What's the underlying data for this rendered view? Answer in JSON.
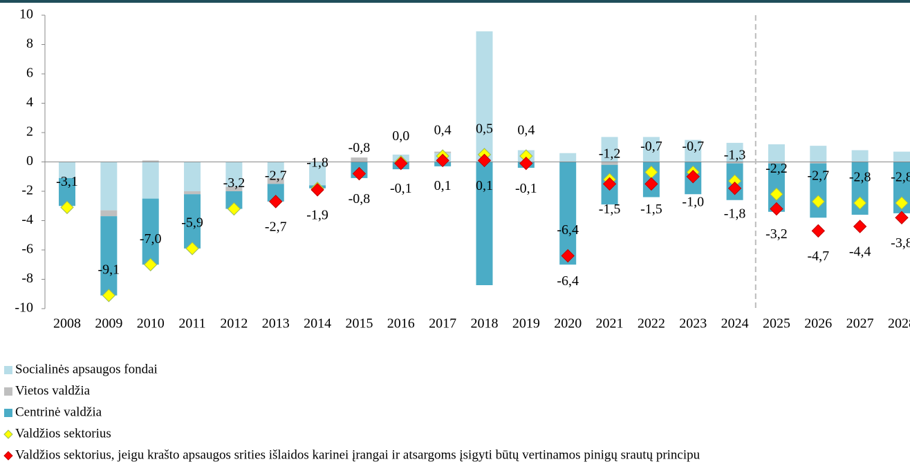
{
  "chart_data": {
    "type": "bar",
    "categories": [
      "2008",
      "2009",
      "2010",
      "2011",
      "2012",
      "2013",
      "2014",
      "2015",
      "2016",
      "2017",
      "2018",
      "2019",
      "2020",
      "2021",
      "2022",
      "2023",
      "2024",
      "2025",
      "2026",
      "2027",
      "2028"
    ],
    "series": [
      {
        "name": "Socialinės apsaugos fondai",
        "color": "#b7dde8",
        "values": [
          -1.1,
          -3.3,
          -2.5,
          -2.0,
          -1.7,
          -1.1,
          -1.6,
          0,
          0.5,
          0.6,
          8.9,
          0.8,
          0.6,
          1.7,
          1.7,
          1.5,
          1.3,
          1.2,
          1.1,
          0.8,
          0.7
        ]
      },
      {
        "name": "Vietos valdžia",
        "color": "#bfbfbf",
        "values": [
          0,
          -0.4,
          0.1,
          -0.2,
          -0.3,
          -0.4,
          0,
          0.3,
          0,
          0.1,
          0,
          0,
          0,
          -0.2,
          0,
          0,
          -0.1,
          -0.1,
          -0.1,
          0,
          0
        ]
      },
      {
        "name": "Centrinė valdžia",
        "color": "#4bacc6",
        "values": [
          -1.9,
          -5.4,
          -4.5,
          -3.7,
          -1.2,
          -1.2,
          -0.2,
          -1.1,
          -0.5,
          -0.3,
          -8.4,
          -0.4,
          -7.0,
          -2.7,
          -2.4,
          -2.2,
          -2.5,
          -3.3,
          -3.7,
          -3.6,
          -3.5
        ]
      },
      {
        "name": "Valdžios sektorius",
        "color": "#ffff00",
        "marker": "diamond",
        "values": [
          -3.1,
          -9.1,
          -7.0,
          -5.9,
          -3.2,
          -2.7,
          -1.8,
          -0.8,
          0.0,
          0.4,
          0.5,
          0.4,
          -6.4,
          -1.2,
          -0.7,
          -0.7,
          -1.3,
          -2.2,
          -2.7,
          -2.8,
          -2.8
        ],
        "value_labels": [
          "-3,1",
          "-9,1",
          "-7,0",
          "-5,9",
          "-3,2",
          "-2,7",
          "-1,8",
          "-0,8",
          "0,0",
          "0,4",
          "0,5",
          "0,4",
          "-6,4",
          "-1,2",
          "-0,7",
          "-0,7",
          "-1,3",
          "-2,2",
          "-2,7",
          "-2,8",
          "-2,8"
        ]
      },
      {
        "name": "Valdžios sektorius, jeigu krašto apsaugos srities išlaidos karinei įrangai ir atsargoms įsigyti būtų vertinamos pinigų srautų principu",
        "color": "#ff0000",
        "marker": "diamond",
        "values": [
          null,
          null,
          null,
          null,
          null,
          -2.7,
          -1.9,
          -0.8,
          -0.1,
          0.1,
          0.1,
          -0.1,
          -6.4,
          -1.5,
          -1.5,
          -1.0,
          -1.8,
          -3.2,
          -4.7,
          -4.4,
          -3.8
        ],
        "value_labels": [
          null,
          null,
          null,
          null,
          null,
          "-2,7",
          "-1,9",
          "-0,8",
          "-0,1",
          "0,1",
          "0,1",
          "-0,1",
          "-6,4",
          "-1,5",
          "-1,5",
          "-1,0",
          "-1,8",
          "-3,2",
          "-4,7",
          "-4,4",
          "-3,8"
        ]
      }
    ],
    "divider_after": "2024",
    "ylim": [
      -10,
      10
    ],
    "yticks": [
      -10,
      -8,
      -6,
      -4,
      -2,
      0,
      2,
      4,
      6,
      8,
      10
    ]
  }
}
